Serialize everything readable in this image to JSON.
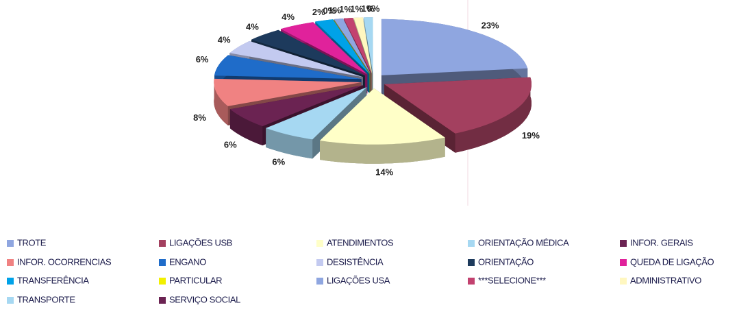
{
  "chart_data": {
    "type": "pie",
    "categories": [
      "TROTE",
      "LIGAÇÕES USB",
      "ATENDIMENTOS",
      "ORIENTAÇÃO MÉDICA",
      "INFOR. GERAIS",
      "INFOR. OCORRENCIAS",
      "ENGANO",
      "DESISTÊNCIA",
      "ORIENTAÇÃO",
      "QUEDA DE LIGAÇÃO",
      "TRANSFERÊNCIA",
      "PARTICULAR",
      "LIGAÇÕES USA",
      "***SELECIONE***",
      "ADMINISTRATIVO",
      "TRANSPORTE",
      "SERVIÇO SOCIAL"
    ],
    "values": [
      23,
      19,
      14,
      6,
      6,
      8,
      6,
      4,
      4,
      4,
      2,
      0,
      1,
      1,
      1,
      1,
      0
    ],
    "value_labels": [
      "23%",
      "19%",
      "14%",
      "6%",
      "6%",
      "8%",
      "6%",
      "4%",
      "4%",
      "4%",
      "2%",
      "0%",
      "1%",
      "1%",
      "1%",
      "1%",
      "0%"
    ],
    "colors": [
      "#8fa6e0",
      "#a3405f",
      "#ffffc8",
      "#a6d8f2",
      "#6b2352",
      "#f08282",
      "#1f6cc9",
      "#c3caf0",
      "#1d3a5c",
      "#e0229b",
      "#00a2e8",
      "#f2f000",
      "#8fa6e0",
      "#c2416f",
      "#fff7c0",
      "#a6d8f2",
      "#6b2352"
    ],
    "legend": "bottom"
  }
}
